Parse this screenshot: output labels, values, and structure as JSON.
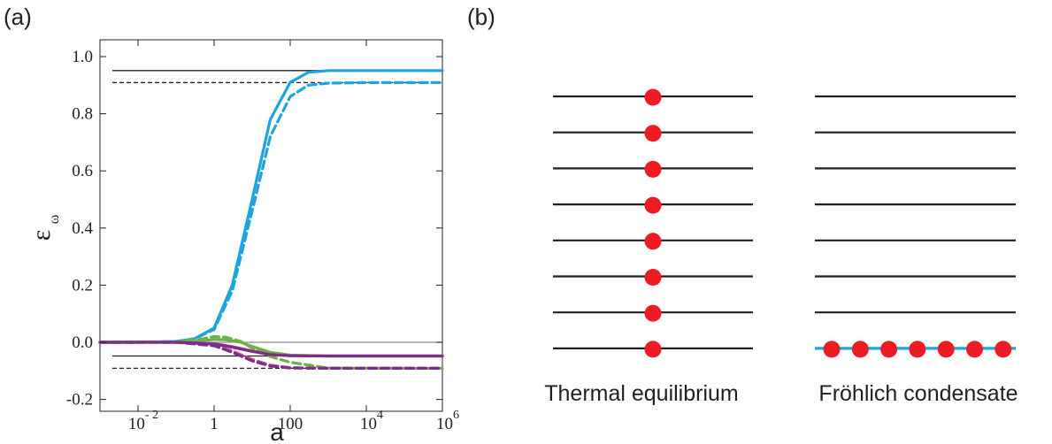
{
  "panels": {
    "a_label": "(a)",
    "b_label": "(b)"
  },
  "chart_data": {
    "type": "line",
    "xscale": "log",
    "xlabel": "a",
    "ylabel": "ε",
    "ylabel_subscript": "ω",
    "xlim": [
      0.001,
      1000000
    ],
    "ylim": [
      -0.12,
      1.0
    ],
    "xticks": [
      {
        "value": 0.01,
        "base": "10",
        "exp": "- 2"
      },
      {
        "value": 1,
        "label": "1"
      },
      {
        "value": 100,
        "label": "100"
      },
      {
        "value": 10000,
        "base": "10",
        "exp": "4"
      },
      {
        "value": 1000000,
        "base": "10",
        "exp": "6"
      }
    ],
    "yticks": [
      "1.0",
      "0.8",
      "0.6",
      "0.4",
      "0.2",
      "0.0",
      "-0.2"
    ],
    "yticks_values": [
      1.0,
      0.8,
      0.6,
      0.4,
      0.2,
      0.0,
      -0.2
    ],
    "reference_lines": [
      {
        "y": 0.951,
        "style": "solid"
      },
      {
        "y": 0.909,
        "style": "dashed"
      },
      {
        "y": 0.0,
        "style": "solid",
        "color": "#8a8a8a"
      },
      {
        "y": -0.048,
        "style": "solid"
      },
      {
        "y": -0.091,
        "style": "dashed"
      }
    ],
    "series": [
      {
        "color": "#1ea4dc",
        "style": "solid",
        "x": [
          0.001,
          0.01,
          0.1,
          0.3,
          1,
          3,
          10,
          30,
          100,
          300,
          1000,
          10000,
          1000000
        ],
        "y": [
          0,
          0,
          0.003,
          0.012,
          0.05,
          0.2,
          0.5,
          0.78,
          0.91,
          0.945,
          0.951,
          0.951,
          0.951
        ]
      },
      {
        "color": "#1ea4dc",
        "style": "dashed",
        "x": [
          0.001,
          0.01,
          0.1,
          0.3,
          1,
          3,
          10,
          30,
          100,
          300,
          1000,
          10000,
          1000000
        ],
        "y": [
          0,
          0,
          0.003,
          0.012,
          0.045,
          0.18,
          0.46,
          0.72,
          0.86,
          0.9,
          0.907,
          0.909,
          0.909
        ]
      },
      {
        "color": "#68b345",
        "style": "dashed",
        "x": [
          0.001,
          0.1,
          0.5,
          1,
          2,
          5,
          10,
          30,
          100,
          1000,
          1000000
        ],
        "y": [
          0,
          0.002,
          0.012,
          0.02,
          0.018,
          0.003,
          -0.02,
          -0.05,
          -0.07,
          -0.09,
          -0.091
        ]
      },
      {
        "color": "#68b345",
        "style": "solid",
        "x": [
          0.001,
          0.1,
          0.5,
          1,
          2,
          5,
          10,
          30,
          100,
          1000,
          1000000
        ],
        "y": [
          0,
          0.001,
          0.006,
          0.01,
          0.009,
          0.0,
          -0.015,
          -0.035,
          -0.045,
          -0.048,
          -0.048
        ]
      },
      {
        "color": "#dc4e7f",
        "style": "solid",
        "x": [
          0.001,
          0.1,
          1,
          3,
          10,
          30,
          100,
          1000,
          1000000
        ],
        "y": [
          0,
          0,
          -0.005,
          -0.015,
          -0.03,
          -0.042,
          -0.047,
          -0.048,
          -0.048
        ]
      },
      {
        "color": "#dc4e7f",
        "style": "dashed",
        "x": [
          0.001,
          0.1,
          1,
          3,
          10,
          30,
          100,
          1000,
          1000000
        ],
        "y": [
          0,
          0,
          -0.01,
          -0.03,
          -0.06,
          -0.08,
          -0.089,
          -0.091,
          -0.091
        ]
      },
      {
        "color": "#7b2d8e",
        "style": "solid",
        "x": [
          0.001,
          0.1,
          1,
          3,
          10,
          30,
          100,
          1000,
          1000000
        ],
        "y": [
          0,
          0,
          -0.006,
          -0.017,
          -0.032,
          -0.043,
          -0.047,
          -0.048,
          -0.048
        ]
      },
      {
        "color": "#7b2d8e",
        "style": "dashed",
        "x": [
          0.001,
          0.1,
          1,
          3,
          10,
          30,
          100,
          1000,
          1000000
        ],
        "y": [
          0,
          0,
          -0.012,
          -0.035,
          -0.065,
          -0.083,
          -0.09,
          -0.091,
          -0.091
        ]
      }
    ]
  },
  "diagram": {
    "levels": 8,
    "left_caption": "Thermal equilibrium",
    "right_caption": "Fröhlich condensate",
    "dot_color": "#ed1c24",
    "ground_line_color": "#1ea4dc",
    "condensate_dots": 7
  }
}
